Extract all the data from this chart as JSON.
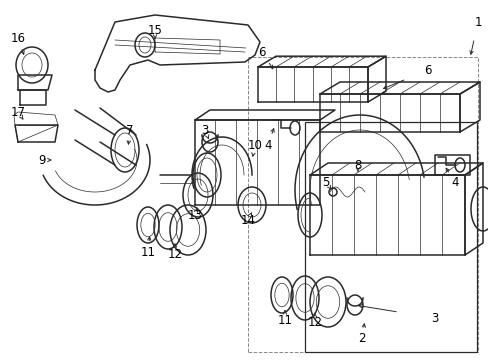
{
  "background_color": "#ffffff",
  "line_color": "#2a2a2a",
  "label_color": "#000000",
  "gray_box_color": "#bbbbbb",
  "figsize": [
    4.89,
    3.6
  ],
  "dpi": 100,
  "lw_main": 1.1,
  "lw_thin": 0.5,
  "lw_thick": 1.5,
  "label_fs": 8.5,
  "label_fs_sm": 7.5
}
